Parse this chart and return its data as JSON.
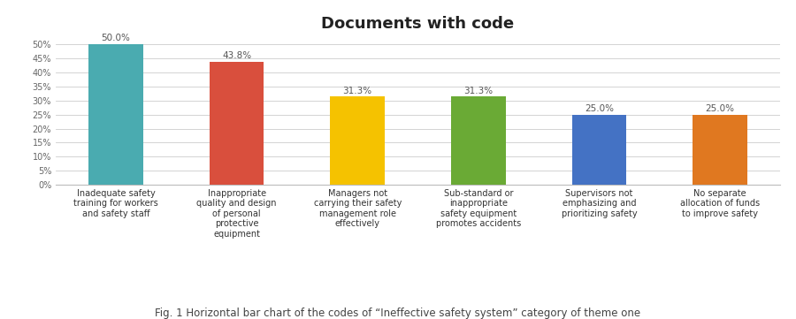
{
  "title": "Documents with code",
  "title_fontsize": 13,
  "title_fontweight": "bold",
  "categories": [
    "Inadequate safety\ntraining for workers\nand safety staff",
    "Inappropriate\nquality and design\nof personal\nprotective\nequipment",
    "Managers not\ncarrying their safety\nmanagement role\neffectively",
    "Sub-standard or\ninappropriate\nsafety equipment\npromotes accidents",
    "Supervisors not\nemphasizing and\nprioritizing safety",
    "No separate\nallocation of funds\nto improve safety"
  ],
  "values": [
    50.0,
    43.8,
    31.3,
    31.3,
    25.0,
    25.0
  ],
  "bar_colors": [
    "#4aabb0",
    "#d94f3d",
    "#f5c200",
    "#6aaa35",
    "#4472c4",
    "#e07820"
  ],
  "ylim": [
    0,
    52
  ],
  "yticks": [
    0,
    5,
    10,
    15,
    20,
    25,
    30,
    35,
    40,
    45,
    50
  ],
  "caption": "Fig. 1 Horizontal bar chart of the codes of “Ineffective safety system” category of theme one",
  "caption_fontsize": 8.5,
  "bar_label_fontsize": 7.5,
  "tick_label_fontsize": 7,
  "ytick_label_fontsize": 7
}
